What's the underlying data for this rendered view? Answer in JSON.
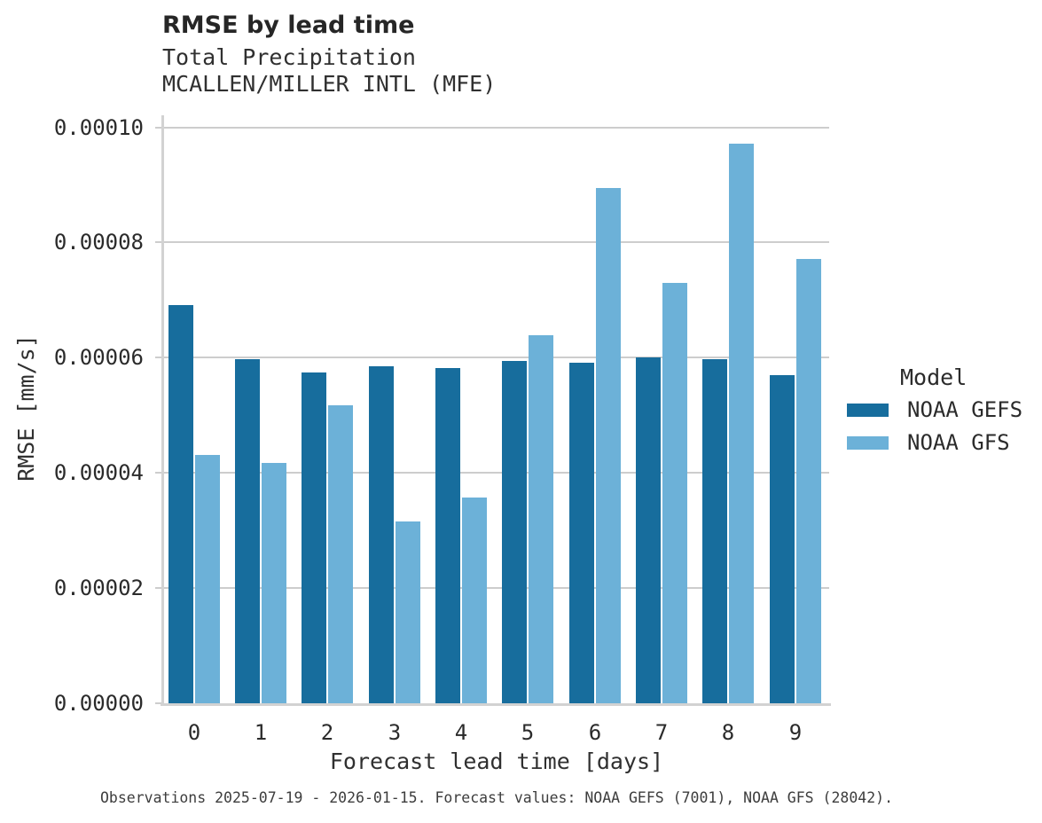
{
  "footer": {
    "text": "Observations 2025-07-19 - 2026-01-15. Forecast values: NOAA GEFS (7001), NOAA GFS (28042)."
  },
  "colors": {
    "gefs_bar": "#176d9d",
    "gfs_bar": "#6cb1d8",
    "gridline": "#cdcdcd",
    "spine": "#d2d2d2"
  },
  "chart_data": {
    "type": "bar",
    "title": "RMSE by lead time",
    "subtitle": [
      "Total Precipitation",
      "MCALLEN/MILLER INTL (MFE)"
    ],
    "xlabel": "Forecast lead time [days]",
    "ylabel": "RMSE [mm/s]",
    "legend_title": "Model",
    "legend_position": "right",
    "grid": true,
    "categories": [
      "0",
      "1",
      "2",
      "3",
      "4",
      "5",
      "6",
      "7",
      "8",
      "9"
    ],
    "ylim": [
      0,
      0.0001
    ],
    "ytick_labels": [
      "0.00000",
      "0.00002",
      "0.00004",
      "0.00006",
      "0.00008",
      "0.00010"
    ],
    "series": [
      {
        "name": "NOAA GEFS",
        "color": "#176d9d",
        "values": [
          6.92e-05,
          5.97e-05,
          5.75e-05,
          5.85e-05,
          5.82e-05,
          5.94e-05,
          5.91e-05,
          6.01e-05,
          5.97e-05,
          5.69e-05
        ]
      },
      {
        "name": "NOAA GFS",
        "color": "#6cb1d8",
        "values": [
          4.31e-05,
          4.18e-05,
          5.18e-05,
          3.15e-05,
          3.57e-05,
          6.39e-05,
          8.94e-05,
          7.3e-05,
          9.71e-05,
          7.72e-05
        ]
      }
    ]
  }
}
